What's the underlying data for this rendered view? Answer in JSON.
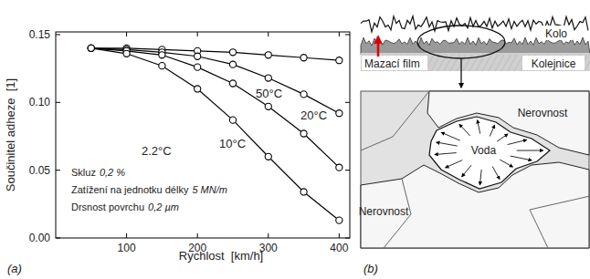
{
  "chart_data": {
    "type": "line",
    "label": "(a)",
    "x_label": "Rychlost  [km/h]",
    "y_label": "Součinitel adheze  [1]",
    "x": [
      50,
      100,
      150,
      200,
      250,
      300,
      350,
      400
    ],
    "series": [
      {
        "name": "50°C",
        "color": "#000000",
        "marker": "circle",
        "values": [
          0.14,
          0.14,
          0.139,
          0.138,
          0.137,
          0.135,
          0.133,
          0.131
        ]
      },
      {
        "name": "20°C",
        "color": "#000000",
        "marker": "circle",
        "values": [
          0.14,
          0.139,
          0.137,
          0.134,
          0.128,
          0.118,
          0.106,
          0.092
        ]
      },
      {
        "name": "10°C",
        "color": "#000000",
        "marker": "circle",
        "values": [
          0.14,
          0.138,
          0.135,
          0.126,
          0.114,
          0.097,
          0.077,
          0.052
        ]
      },
      {
        "name": "2.2°C",
        "color": "#000000",
        "marker": "circle",
        "values": [
          0.14,
          0.136,
          0.127,
          0.11,
          0.087,
          0.06,
          0.034,
          0.013
        ]
      }
    ],
    "xlim": [
      0,
      415
    ],
    "xticks": [
      100,
      200,
      300,
      400
    ],
    "ylim": [
      0,
      0.152
    ],
    "yticks": [
      {
        "value": 0,
        "label": "0.00"
      },
      0.05,
      {
        "value": 0.1,
        "label": "0.10"
      },
      0.15
    ],
    "grid": false,
    "annotations": [
      {
        "text": "Skluz",
        "value": "0,2 %"
      },
      {
        "text": "Zatížení na jednotku délky",
        "value": "5 MN/m"
      },
      {
        "text": "Drsnost povrchu",
        "value": "0,2 µm"
      }
    ]
  },
  "diagram": {
    "label": "(b)",
    "contact": {
      "wheel": "Kolo",
      "film": "Mazací film",
      "rail": "Kolejnice"
    },
    "detail": {
      "asperities": [
        "Nerovnost",
        "Nerovnost"
      ],
      "water": "Voda"
    }
  }
}
